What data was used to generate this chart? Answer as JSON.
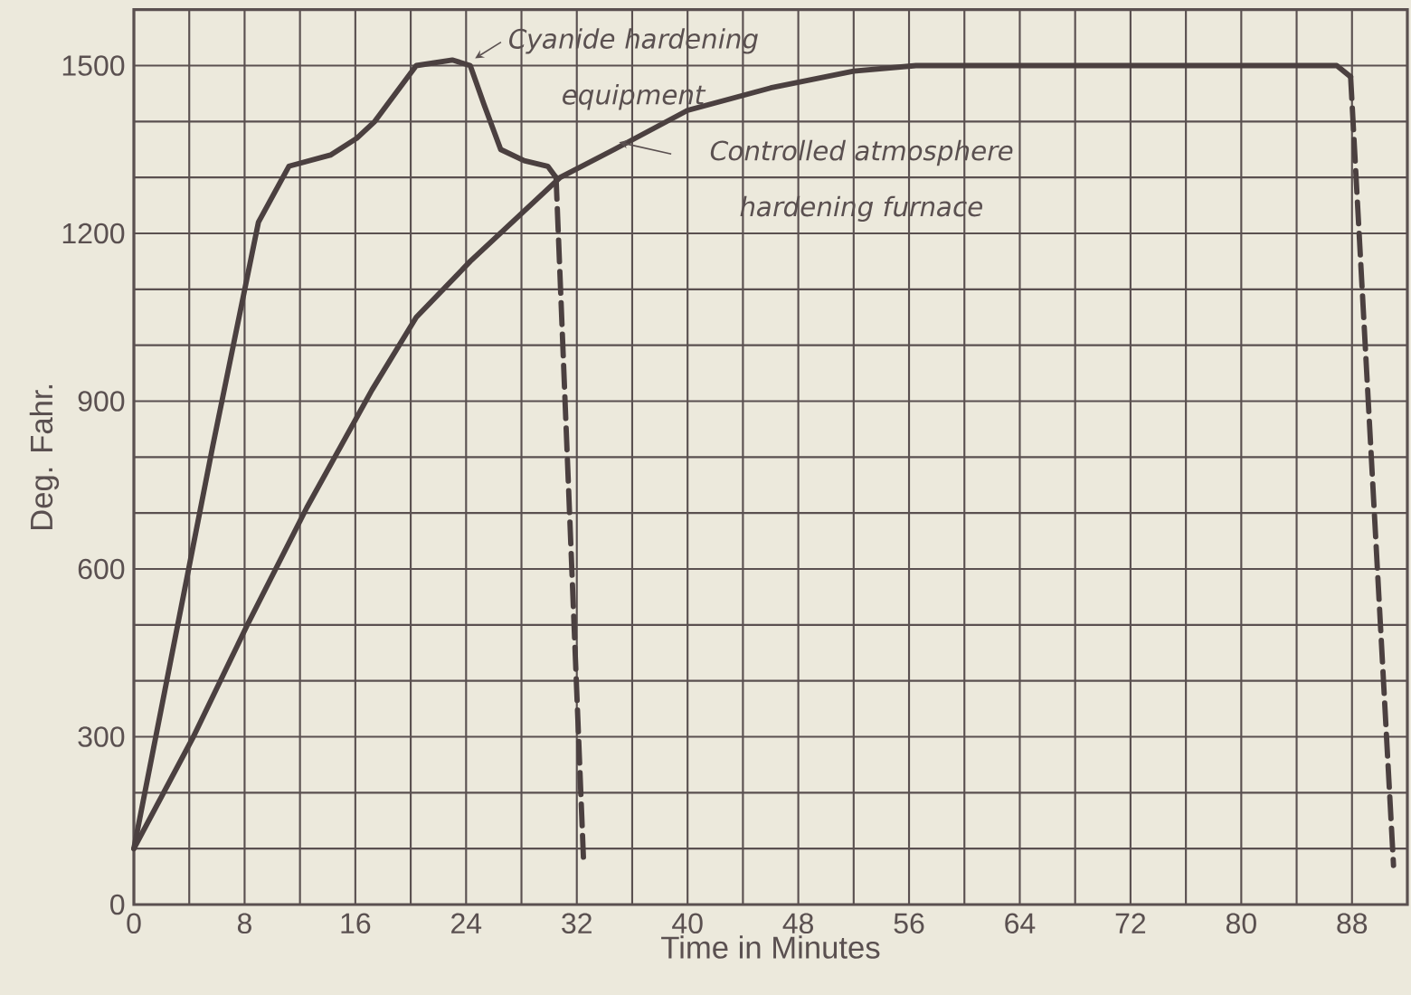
{
  "chart_data": {
    "type": "line",
    "xlabel": "Time in Minutes",
    "ylabel": "Deg. Fahr.",
    "xlim": [
      0,
      92
    ],
    "ylim": [
      0,
      1600
    ],
    "grid": true,
    "marker": "none",
    "legend": "top",
    "xticks": [
      0,
      {
        "value": 4,
        "label": null
      },
      8,
      {
        "value": 12,
        "label": null
      },
      16,
      {
        "value": 20,
        "label": null
      },
      24,
      {
        "value": 28,
        "label": null
      },
      32,
      {
        "value": 36,
        "label": null
      },
      40,
      {
        "value": 44,
        "label": null
      },
      48,
      {
        "value": 52,
        "label": null
      },
      56,
      {
        "value": 60,
        "label": null
      },
      64,
      {
        "value": 68,
        "label": null
      },
      72,
      {
        "value": 76,
        "label": null
      },
      80,
      {
        "value": 84,
        "label": null
      },
      88
    ],
    "yticks": [
      0,
      {
        "value": 100,
        "label": null
      },
      {
        "value": 200,
        "label": null
      },
      300,
      {
        "value": 400,
        "label": null
      },
      {
        "value": 500,
        "label": null
      },
      600,
      {
        "value": 700,
        "label": null
      },
      {
        "value": 800,
        "label": null
      },
      900,
      {
        "value": 1000,
        "label": null
      },
      {
        "value": 1100,
        "label": null
      },
      1200,
      {
        "value": 1300,
        "label": null
      },
      {
        "value": 1400,
        "label": null
      },
      1500
    ],
    "series": [
      {
        "name": "Cyanide hardening equipment",
        "color": "#4b4040",
        "line_style": "solid",
        "x": [
          0,
          5.7,
          9,
          11.2,
          14.2,
          16.1,
          17.4,
          20.4,
          23,
          24.3,
          25.3,
          26.5,
          28.2,
          29.9,
          30.5
        ],
        "values": [
          100,
          820,
          1220,
          1320,
          1340,
          1370,
          1400,
          1500,
          1510,
          1500,
          1430,
          1350,
          1330,
          1320,
          1300
        ]
      },
      {
        "color": "#4b4040",
        "line_style": "dashed",
        "x": [
          30.5,
          32.5
        ],
        "values": [
          1300,
          70
        ]
      },
      {
        "name": "Controlled atmosphere hardening furnace",
        "color": "#4b4040",
        "line_style": "solid",
        "x": [
          0,
          4.3,
          8.2,
          12.5,
          17.2,
          20.4,
          24.3,
          30.8,
          34.7,
          40,
          46,
          52,
          56.5,
          70,
          86.9,
          87.9
        ],
        "values": [
          100,
          300,
          500,
          710,
          920,
          1050,
          1150,
          1300,
          1350,
          1420,
          1460,
          1490,
          1500,
          1500,
          1500,
          1480
        ]
      },
      {
        "color": "#4b4040",
        "line_style": "dashed",
        "x": [
          87.9,
          91
        ],
        "values": [
          1480,
          70
        ]
      }
    ]
  }
}
